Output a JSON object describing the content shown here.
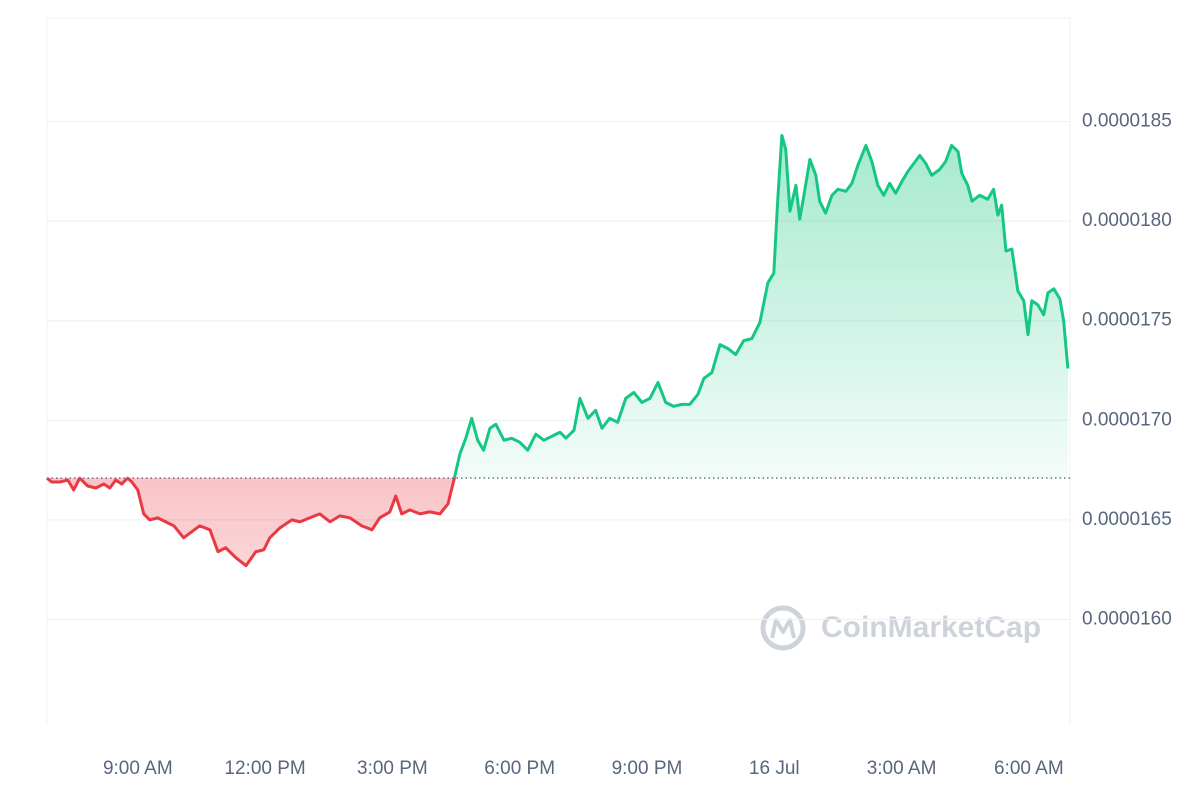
{
  "chart_data": {
    "type": "line",
    "watermark": "CoinMarketCap",
    "baseline": 1.671e-05,
    "up_color": "#16c784",
    "down_color": "#ea3943",
    "grid": true,
    "xlim": [
      6.86,
      30.97
    ],
    "ylim": [
      1.547e-05,
      1.902e-05
    ],
    "xticks": [
      {
        "value": 9,
        "label": "9:00 AM"
      },
      {
        "value": 12,
        "label": "12:00 PM"
      },
      {
        "value": 15,
        "label": "3:00 PM"
      },
      {
        "value": 18,
        "label": "6:00 PM"
      },
      {
        "value": 21,
        "label": "9:00 PM"
      },
      {
        "value": 24,
        "label": "16 Jul"
      },
      {
        "value": 27,
        "label": "3:00 AM"
      },
      {
        "value": 30,
        "label": "6:00 AM"
      }
    ],
    "yticks": [
      {
        "value": 1.6e-05,
        "label": "0.0000160"
      },
      {
        "value": 1.65e-05,
        "label": "0.0000165"
      },
      {
        "value": 1.7e-05,
        "label": "0.0000170"
      },
      {
        "value": 1.75e-05,
        "label": "0.0000175"
      },
      {
        "value": 1.8e-05,
        "label": "0.0000180"
      },
      1.85e-05
    ],
    "x": [
      6.86,
      6.97,
      7.16,
      7.35,
      7.49,
      7.63,
      7.82,
      8.01,
      8.2,
      8.34,
      8.48,
      8.62,
      8.76,
      8.86,
      9.0,
      9.14,
      9.28,
      9.47,
      9.66,
      9.85,
      10.08,
      10.27,
      10.46,
      10.7,
      10.89,
      11.07,
      11.31,
      11.55,
      11.78,
      11.97,
      12.11,
      12.35,
      12.63,
      12.82,
      13.05,
      13.29,
      13.53,
      13.76,
      14.0,
      14.28,
      14.52,
      14.7,
      14.94,
      15.08,
      15.22,
      15.41,
      15.65,
      15.88,
      16.12,
      16.31,
      16.45,
      16.59,
      16.73,
      16.87,
      17.01,
      17.15,
      17.3,
      17.44,
      17.63,
      17.81,
      18.0,
      18.19,
      18.38,
      18.57,
      18.76,
      18.95,
      19.09,
      19.28,
      19.42,
      19.61,
      19.79,
      19.94,
      20.12,
      20.31,
      20.5,
      20.69,
      20.88,
      21.07,
      21.26,
      21.44,
      21.63,
      21.82,
      22.01,
      22.2,
      22.34,
      22.53,
      22.72,
      22.91,
      23.09,
      23.28,
      23.47,
      23.66,
      23.85,
      23.99,
      24.08,
      24.18,
      24.27,
      24.37,
      24.51,
      24.6,
      24.7,
      24.84,
      24.98,
      25.07,
      25.21,
      25.36,
      25.5,
      25.69,
      25.83,
      25.97,
      26.16,
      26.3,
      26.44,
      26.58,
      26.72,
      26.86,
      27.01,
      27.15,
      27.29,
      27.43,
      27.57,
      27.71,
      27.9,
      28.04,
      28.18,
      28.33,
      28.42,
      28.56,
      28.66,
      28.84,
      29.03,
      29.17,
      29.27,
      29.36,
      29.46,
      29.6,
      29.74,
      29.88,
      29.98,
      30.07,
      30.21,
      30.35,
      30.45,
      30.59,
      30.73,
      30.82,
      30.92
    ],
    "values": [
      1.671e-05,
      1.669e-05,
      1.669e-05,
      1.67e-05,
      1.665e-05,
      1.671e-05,
      1.667e-05,
      1.666e-05,
      1.668e-05,
      1.666e-05,
      1.67e-05,
      1.668e-05,
      1.671e-05,
      1.669e-05,
      1.665e-05,
      1.653e-05,
      1.65e-05,
      1.651e-05,
      1.649e-05,
      1.647e-05,
      1.641e-05,
      1.644e-05,
      1.647e-05,
      1.645e-05,
      1.634e-05,
      1.636e-05,
      1.631e-05,
      1.627e-05,
      1.634e-05,
      1.635e-05,
      1.641e-05,
      1.646e-05,
      1.65e-05,
      1.649e-05,
      1.651e-05,
      1.653e-05,
      1.649e-05,
      1.652e-05,
      1.651e-05,
      1.647e-05,
      1.645e-05,
      1.651e-05,
      1.654e-05,
      1.662e-05,
      1.653e-05,
      1.655e-05,
      1.653e-05,
      1.654e-05,
      1.653e-05,
      1.658e-05,
      1.67e-05,
      1.683e-05,
      1.691e-05,
      1.701e-05,
      1.69e-05,
      1.685e-05,
      1.696e-05,
      1.698e-05,
      1.69e-05,
      1.691e-05,
      1.689e-05,
      1.685e-05,
      1.693e-05,
      1.69e-05,
      1.692e-05,
      1.694e-05,
      1.691e-05,
      1.695e-05,
      1.711e-05,
      1.701e-05,
      1.705e-05,
      1.696e-05,
      1.701e-05,
      1.699e-05,
      1.711e-05,
      1.714e-05,
      1.709e-05,
      1.711e-05,
      1.719e-05,
      1.709e-05,
      1.707e-05,
      1.708e-05,
      1.708e-05,
      1.713e-05,
      1.721e-05,
      1.724e-05,
      1.738e-05,
      1.736e-05,
      1.733e-05,
      1.74e-05,
      1.741e-05,
      1.749e-05,
      1.769e-05,
      1.774e-05,
      1.81e-05,
      1.843e-05,
      1.836e-05,
      1.805e-05,
      1.818e-05,
      1.801e-05,
      1.813e-05,
      1.831e-05,
      1.823e-05,
      1.81e-05,
      1.804e-05,
      1.813e-05,
      1.816e-05,
      1.815e-05,
      1.819e-05,
      1.828e-05,
      1.838e-05,
      1.83e-05,
      1.818e-05,
      1.813e-05,
      1.819e-05,
      1.814e-05,
      1.82e-05,
      1.825e-05,
      1.829e-05,
      1.833e-05,
      1.829e-05,
      1.823e-05,
      1.826e-05,
      1.83e-05,
      1.838e-05,
      1.835e-05,
      1.824e-05,
      1.818e-05,
      1.81e-05,
      1.813e-05,
      1.811e-05,
      1.816e-05,
      1.803e-05,
      1.808e-05,
      1.785e-05,
      1.786e-05,
      1.765e-05,
      1.76e-05,
      1.743e-05,
      1.76e-05,
      1.758e-05,
      1.753e-05,
      1.764e-05,
      1.766e-05,
      1.761e-05,
      1.75e-05,
      1.726e-05
    ]
  }
}
